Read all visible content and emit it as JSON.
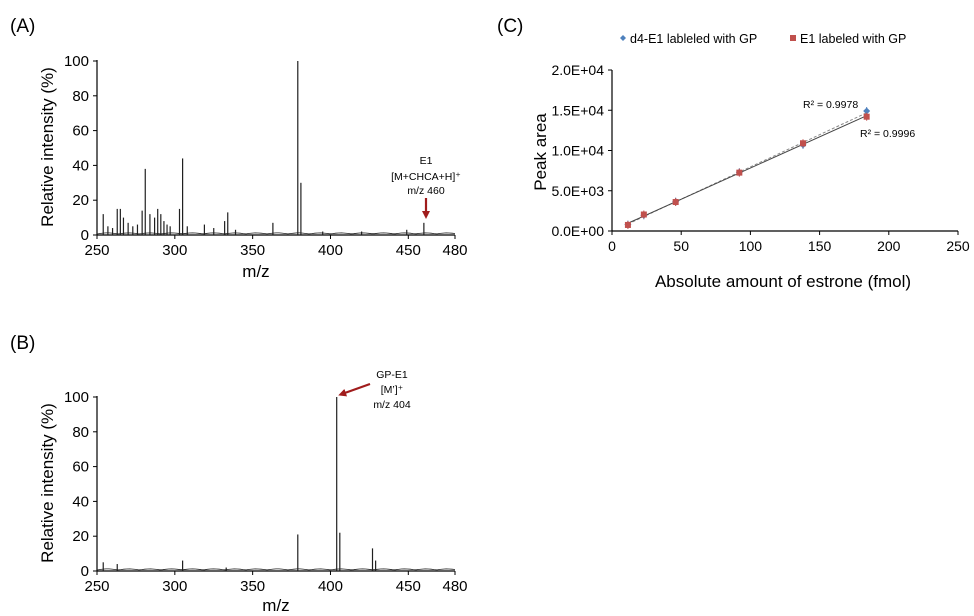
{
  "panels": {
    "a": "(A)",
    "b": "(B)",
    "c": "(C)"
  },
  "colors": {
    "arrow": "#a01c1c",
    "d4": "#4f81bd",
    "e1": "#c0504d",
    "spectrum": "#202020"
  },
  "chart_data": [
    {
      "type": "line",
      "id": "spectrum_A",
      "title": "",
      "xlabel": "m/z",
      "ylabel": "Relative intensity (%)",
      "xlim": [
        250,
        480
      ],
      "ylim": [
        0,
        100
      ],
      "xticks": [
        "250",
        "300",
        "350",
        "400",
        "450",
        "480"
      ],
      "yticks": [
        "0",
        "20",
        "40",
        "60",
        "80",
        "100"
      ],
      "peaks": [
        {
          "x": 254,
          "y": 12
        },
        {
          "x": 257,
          "y": 5
        },
        {
          "x": 260,
          "y": 4
        },
        {
          "x": 263,
          "y": 15
        },
        {
          "x": 265,
          "y": 15
        },
        {
          "x": 267,
          "y": 10
        },
        {
          "x": 270,
          "y": 7
        },
        {
          "x": 273,
          "y": 5
        },
        {
          "x": 276,
          "y": 6
        },
        {
          "x": 279,
          "y": 14
        },
        {
          "x": 281,
          "y": 38
        },
        {
          "x": 284,
          "y": 12
        },
        {
          "x": 287,
          "y": 10
        },
        {
          "x": 289,
          "y": 15
        },
        {
          "x": 291,
          "y": 12
        },
        {
          "x": 293,
          "y": 8
        },
        {
          "x": 295,
          "y": 6
        },
        {
          "x": 297,
          "y": 5
        },
        {
          "x": 303,
          "y": 15
        },
        {
          "x": 305,
          "y": 44
        },
        {
          "x": 308,
          "y": 5
        },
        {
          "x": 319,
          "y": 6
        },
        {
          "x": 325,
          "y": 4
        },
        {
          "x": 332,
          "y": 8
        },
        {
          "x": 334,
          "y": 13
        },
        {
          "x": 339,
          "y": 3
        },
        {
          "x": 363,
          "y": 7
        },
        {
          "x": 379,
          "y": 100
        },
        {
          "x": 381,
          "y": 30
        },
        {
          "x": 395,
          "y": 2
        },
        {
          "x": 420,
          "y": 2
        },
        {
          "x": 449,
          "y": 3
        },
        {
          "x": 460,
          "y": 7
        }
      ],
      "annotation": {
        "lines": [
          "E1",
          "[M+CHCA+H]⁺",
          "m/z 460"
        ],
        "x": 460,
        "y": 7
      }
    },
    {
      "type": "line",
      "id": "spectrum_B",
      "title": "",
      "xlabel": "m/z",
      "ylabel": "Relative intensity (%)",
      "xlim": [
        250,
        480
      ],
      "ylim": [
        0,
        100
      ],
      "xticks": [
        "250",
        "300",
        "350",
        "400",
        "450",
        "480"
      ],
      "yticks": [
        "0",
        "20",
        "40",
        "60",
        "80",
        "100"
      ],
      "peaks": [
        {
          "x": 254,
          "y": 5
        },
        {
          "x": 263,
          "y": 4
        },
        {
          "x": 305,
          "y": 6
        },
        {
          "x": 333,
          "y": 2
        },
        {
          "x": 379,
          "y": 21
        },
        {
          "x": 404,
          "y": 100
        },
        {
          "x": 406,
          "y": 22
        },
        {
          "x": 427,
          "y": 13
        },
        {
          "x": 429,
          "y": 6
        }
      ],
      "annotation": {
        "lines": [
          "GP-E1",
          "[M’]⁺",
          "m/z 404"
        ],
        "x": 404,
        "y": 100
      }
    },
    {
      "type": "scatter",
      "id": "calibration_C",
      "title": "",
      "xlabel": "Absolute amount of estrone (fmol)",
      "ylabel": "Peak area",
      "xlim": [
        0,
        250
      ],
      "ylim": [
        0,
        20000
      ],
      "xticks": [
        "0",
        "50",
        "100",
        "150",
        "200",
        "250"
      ],
      "yticks": [
        "0.0E+00",
        "5.0E+03",
        "1.0E+04",
        "1.5E+04",
        "2.0E+04"
      ],
      "legend_position": "top",
      "series": [
        {
          "name": "d4-E1 lableled with GP",
          "marker": "diamond",
          "x": [
            11.5,
            23,
            46,
            92,
            138,
            184
          ],
          "y": [
            800,
            1950,
            3650,
            7300,
            10700,
            14900
          ],
          "r2": "R² = 0.9978"
        },
        {
          "name": "E1 labeled with GP",
          "marker": "square",
          "x": [
            11.5,
            23,
            46,
            92,
            138,
            184
          ],
          "y": [
            750,
            2050,
            3600,
            7250,
            10900,
            14200
          ],
          "r2": "R² = 0.9996"
        }
      ]
    }
  ]
}
